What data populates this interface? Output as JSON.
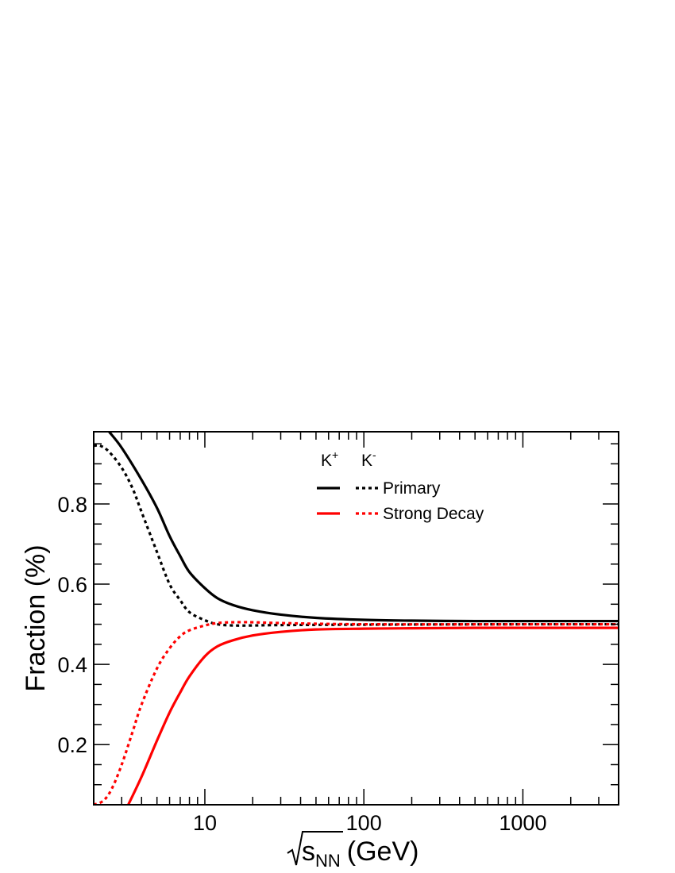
{
  "chart_data": {
    "type": "line",
    "title": "",
    "xlabel": {
      "sqrt_symbol": "√",
      "main": "s",
      "sub": "NN",
      "unit": "(GeV)"
    },
    "ylabel": "Fraction (%)",
    "xscale": "log",
    "xlim": [
      2,
      4000
    ],
    "ylim": [
      0.05,
      0.98
    ],
    "xticks": [
      10,
      100,
      1000
    ],
    "xtick_labels": [
      "10",
      "100",
      "1000"
    ],
    "yticks": [
      0.2,
      0.4,
      0.6,
      0.8
    ],
    "ytick_labels": [
      "0.2",
      "0.4",
      "0.6",
      "0.8"
    ],
    "grid": false,
    "legend": {
      "placement": "top-center",
      "header": [
        {
          "main": "K",
          "sup": "+"
        },
        {
          "main": "K",
          "sup": "-"
        }
      ],
      "rows": [
        {
          "label": "Primary",
          "color": "#000000"
        },
        {
          "label": "Strong Decay",
          "color": "#ff0000"
        }
      ]
    },
    "series": [
      {
        "particle": "K+",
        "component": "Primary",
        "color": "#000000",
        "dash": "solid",
        "x": [
          2.5,
          3,
          4,
          5,
          6,
          7,
          8,
          10,
          12,
          15,
          20,
          30,
          50,
          100,
          200,
          500,
          1000,
          4000
        ],
        "y": [
          0.98,
          0.94,
          0.86,
          0.79,
          0.72,
          0.67,
          0.63,
          0.59,
          0.565,
          0.548,
          0.535,
          0.524,
          0.516,
          0.511,
          0.509,
          0.508,
          0.508,
          0.508
        ]
      },
      {
        "particle": "K-",
        "component": "Primary",
        "color": "#000000",
        "dash": "dotted",
        "x": [
          2,
          2.2,
          2.5,
          3,
          3.5,
          4,
          5,
          6,
          7,
          8,
          10,
          12,
          15,
          20,
          30,
          100,
          1000,
          4000
        ],
        "y": [
          0.945,
          0.945,
          0.93,
          0.89,
          0.84,
          0.78,
          0.68,
          0.6,
          0.56,
          0.53,
          0.51,
          0.5,
          0.497,
          0.497,
          0.498,
          0.499,
          0.5,
          0.5
        ]
      },
      {
        "particle": "K+",
        "component": "Strong Decay",
        "color": "#ff0000",
        "dash": "solid",
        "x": [
          3.3,
          4,
          5,
          6,
          7,
          8,
          10,
          12,
          15,
          20,
          30,
          50,
          100,
          200,
          500,
          1000,
          4000
        ],
        "y": [
          0.05,
          0.12,
          0.21,
          0.28,
          0.33,
          0.37,
          0.42,
          0.445,
          0.46,
          0.472,
          0.481,
          0.487,
          0.489,
          0.49,
          0.491,
          0.491,
          0.491
        ]
      },
      {
        "particle": "K-",
        "component": "Strong Decay",
        "color": "#ff0000",
        "dash": "dotted",
        "x": [
          2,
          2.3,
          2.6,
          3,
          3.5,
          4,
          5,
          6,
          7,
          8,
          10,
          12,
          15,
          20,
          30,
          100,
          1000,
          4000
        ],
        "y": [
          0.05,
          0.06,
          0.09,
          0.15,
          0.23,
          0.3,
          0.39,
          0.44,
          0.47,
          0.485,
          0.497,
          0.503,
          0.505,
          0.505,
          0.503,
          0.5,
          0.5,
          0.5
        ]
      }
    ]
  }
}
